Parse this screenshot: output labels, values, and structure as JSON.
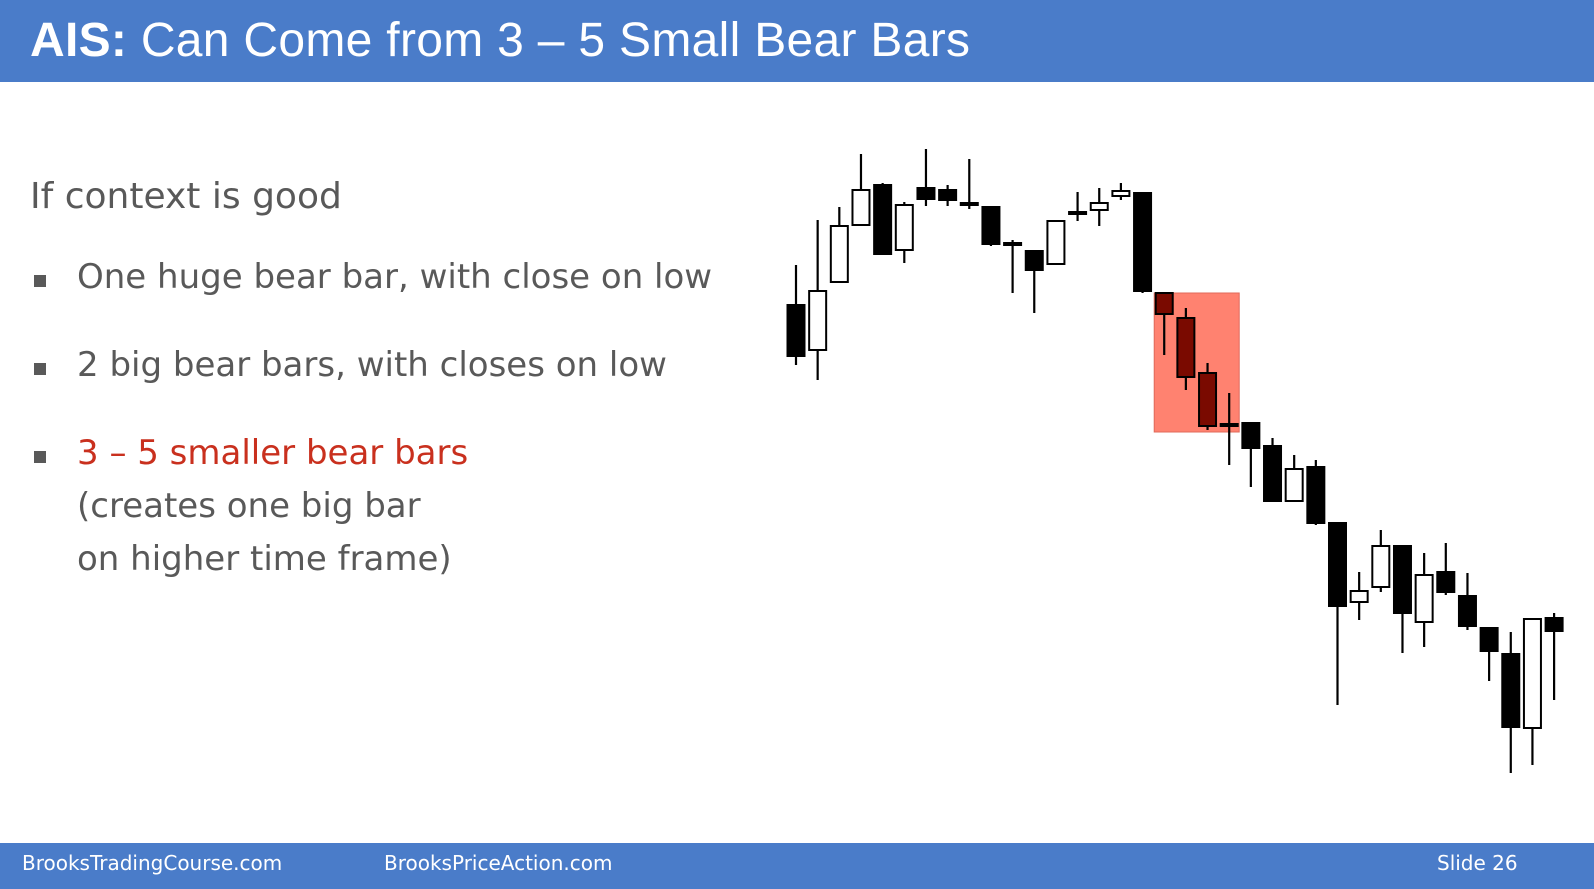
{
  "title": {
    "prefix": "AIS:",
    "text": "Can Come from 3 – 5 Small Bear Bars"
  },
  "content": {
    "intro": "If context is good",
    "bullets": [
      {
        "text": "One huge bear bar, with close on low"
      },
      {
        "text": "2 big bear bars, with closes on low"
      },
      {
        "highlight": "3 – 5 smaller bear bars",
        "line2": "(creates one big bar",
        "line3": "on higher time frame)"
      }
    ]
  },
  "chart_data": {
    "type": "candlestick",
    "colors": {
      "bear": "#000000",
      "bull": "#ffffff",
      "outline": "#000000",
      "highlight_fill": "#ff8270",
      "highlight_bear": "#7a0a00"
    },
    "highlight": {
      "from_index": 17,
      "to_index": 20
    },
    "bars": [
      {
        "o": 305,
        "h": 265,
        "l": 365,
        "c": 356
      },
      {
        "o": 350,
        "h": 220,
        "l": 380,
        "c": 291
      },
      {
        "o": 282,
        "h": 207,
        "l": 282,
        "c": 226
      },
      {
        "o": 225,
        "h": 154,
        "l": 225,
        "c": 190
      },
      {
        "o": 185,
        "h": 183,
        "l": 255,
        "c": 254
      },
      {
        "o": 250,
        "h": 202,
        "l": 263,
        "c": 205
      },
      {
        "o": 188,
        "h": 149,
        "l": 206,
        "c": 199
      },
      {
        "o": 190,
        "h": 185,
        "l": 206,
        "c": 200
      },
      {
        "o": 203,
        "h": 159,
        "l": 209,
        "c": 203
      },
      {
        "o": 207,
        "h": 207,
        "l": 246,
        "c": 244
      },
      {
        "o": 243,
        "h": 240,
        "l": 293,
        "c": 245
      },
      {
        "o": 251,
        "h": 251,
        "l": 313,
        "c": 270
      },
      {
        "o": 264,
        "h": 220,
        "l": 264,
        "c": 221
      },
      {
        "o": 212,
        "h": 192,
        "l": 221,
        "c": 212
      },
      {
        "o": 210,
        "h": 188,
        "l": 226,
        "c": 203
      },
      {
        "o": 196,
        "h": 183,
        "l": 200,
        "c": 191
      },
      {
        "o": 193,
        "h": 193,
        "l": 293,
        "c": 291
      },
      {
        "o": 293,
        "h": 293,
        "l": 355,
        "c": 314
      },
      {
        "o": 318,
        "h": 308,
        "l": 390,
        "c": 377
      },
      {
        "o": 373,
        "h": 363,
        "l": 430,
        "c": 426
      },
      {
        "o": 424,
        "h": 393,
        "l": 465,
        "c": 424
      },
      {
        "o": 423,
        "h": 423,
        "l": 487,
        "c": 448
      },
      {
        "o": 446,
        "h": 438,
        "l": 502,
        "c": 501
      },
      {
        "o": 501,
        "h": 455,
        "l": 501,
        "c": 469
      },
      {
        "o": 467,
        "h": 460,
        "l": 525,
        "c": 523
      },
      {
        "o": 523,
        "h": 523,
        "l": 705,
        "c": 606
      },
      {
        "o": 602,
        "h": 572,
        "l": 620,
        "c": 591
      },
      {
        "o": 587,
        "h": 530,
        "l": 592,
        "c": 546
      },
      {
        "o": 546,
        "h": 546,
        "l": 653,
        "c": 613
      },
      {
        "o": 622,
        "h": 553,
        "l": 647,
        "c": 575
      },
      {
        "o": 572,
        "h": 543,
        "l": 595,
        "c": 592
      },
      {
        "o": 596,
        "h": 573,
        "l": 630,
        "c": 626
      },
      {
        "o": 628,
        "h": 628,
        "l": 681,
        "c": 651
      },
      {
        "o": 654,
        "h": 632,
        "l": 773,
        "c": 727
      },
      {
        "o": 728,
        "h": 618,
        "l": 765,
        "c": 619
      },
      {
        "o": 618,
        "h": 613,
        "l": 700,
        "c": 631
      }
    ]
  },
  "footer": {
    "left": "BrooksTradingCourse.com",
    "middle": "BrooksPriceAction.com",
    "slide_label": "Slide  26"
  }
}
